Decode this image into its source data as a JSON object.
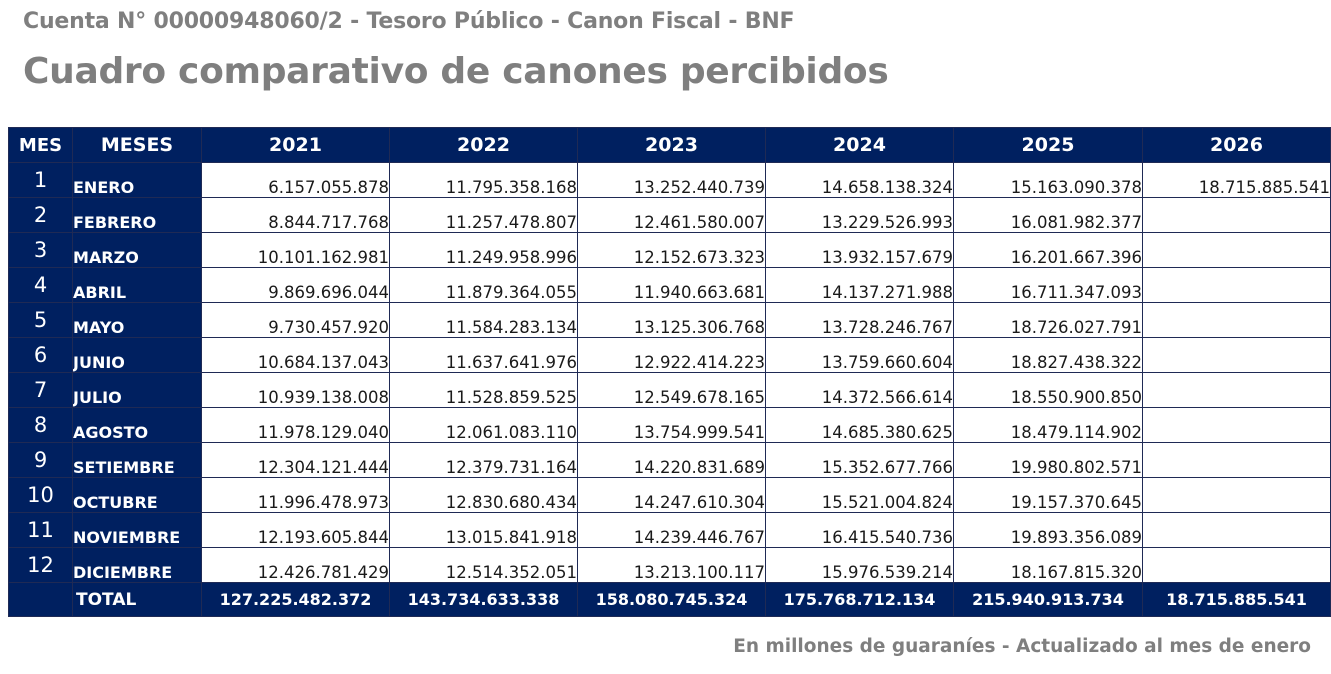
{
  "header": {
    "account_line": "Cuenta N° 00000948060/2 - Tesoro Público - Canon Fiscal - BNF",
    "title": "Cuadro comparativo de canones percibidos"
  },
  "table": {
    "columns": [
      "MES",
      "MESES",
      "2021",
      "2022",
      "2023",
      "2024",
      "2025",
      "2026"
    ],
    "rows": [
      {
        "num": "1",
        "month": "ENERO",
        "values": [
          "6.157.055.878",
          "11.795.358.168",
          "13.252.440.739",
          "14.658.138.324",
          "15.163.090.378",
          "18.715.885.541"
        ]
      },
      {
        "num": "2",
        "month": "FEBRERO",
        "values": [
          "8.844.717.768",
          "11.257.478.807",
          "12.461.580.007",
          "13.229.526.993",
          "16.081.982.377",
          ""
        ]
      },
      {
        "num": "3",
        "month": "MARZO",
        "values": [
          "10.101.162.981",
          "11.249.958.996",
          "12.152.673.323",
          "13.932.157.679",
          "16.201.667.396",
          ""
        ]
      },
      {
        "num": "4",
        "month": "ABRIL",
        "values": [
          "9.869.696.044",
          "11.879.364.055",
          "11.940.663.681",
          "14.137.271.988",
          "16.711.347.093",
          ""
        ]
      },
      {
        "num": "5",
        "month": "MAYO",
        "values": [
          "9.730.457.920",
          "11.584.283.134",
          "13.125.306.768",
          "13.728.246.767",
          "18.726.027.791",
          ""
        ]
      },
      {
        "num": "6",
        "month": "JUNIO",
        "values": [
          "10.684.137.043",
          "11.637.641.976",
          "12.922.414.223",
          "13.759.660.604",
          "18.827.438.322",
          ""
        ]
      },
      {
        "num": "7",
        "month": "JULIO",
        "values": [
          "10.939.138.008",
          "11.528.859.525",
          "12.549.678.165",
          "14.372.566.614",
          "18.550.900.850",
          ""
        ]
      },
      {
        "num": "8",
        "month": "AGOSTO",
        "values": [
          "11.978.129.040",
          "12.061.083.110",
          "13.754.999.541",
          "14.685.380.625",
          "18.479.114.902",
          ""
        ]
      },
      {
        "num": "9",
        "month": "SETIEMBRE",
        "values": [
          "12.304.121.444",
          "12.379.731.164",
          "14.220.831.689",
          "15.352.677.766",
          "19.980.802.571",
          ""
        ]
      },
      {
        "num": "10",
        "month": "OCTUBRE",
        "values": [
          "11.996.478.973",
          "12.830.680.434",
          "14.247.610.304",
          "15.521.004.824",
          "19.157.370.645",
          ""
        ]
      },
      {
        "num": "11",
        "month": "NOVIEMBRE",
        "values": [
          "12.193.605.844",
          "13.015.841.918",
          "14.239.446.767",
          "16.415.540.736",
          "19.893.356.089",
          ""
        ]
      },
      {
        "num": "12",
        "month": "DICIEMBRE",
        "values": [
          "12.426.781.429",
          "12.514.352.051",
          "13.213.100.117",
          "15.976.539.214",
          "18.167.815.320",
          ""
        ]
      }
    ],
    "total": {
      "label": "TOTAL",
      "values": [
        "127.225.482.372",
        "143.734.633.338",
        "158.080.745.324",
        "175.768.712.134",
        "215.940.913.734",
        "18.715.885.541"
      ]
    }
  },
  "footer": {
    "note": "En millones de guaraníes - Actualizado al mes de enero"
  },
  "colors": {
    "header_bg": "#002060",
    "title_gray": "#7f7f7f"
  }
}
